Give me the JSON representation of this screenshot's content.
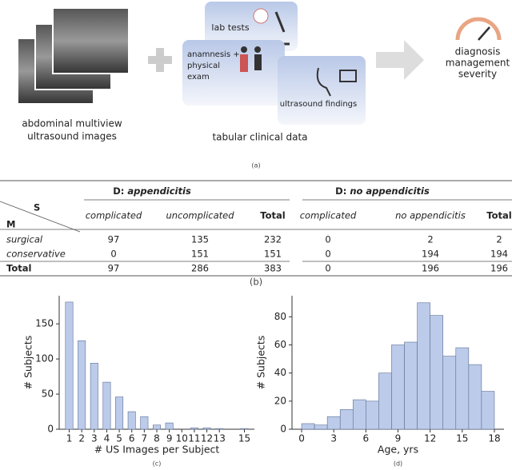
{
  "panel_a": {
    "image_caption": [
      "abdominal multiview",
      "ultrasound images"
    ],
    "lab": "lab tests",
    "anamnesis": [
      "anamnesis +",
      "physical",
      "exam"
    ],
    "ultrasound": "ultrasound findings",
    "tabular_caption": "tabular clinical data",
    "outputs": [
      "diagnosis",
      "management",
      "severity"
    ],
    "caption": "(a)"
  },
  "table": {
    "corner_s": "S",
    "corner_m": "M",
    "groups": [
      {
        "prefix": "D:",
        "name": "appendicitis"
      },
      {
        "prefix": "D:",
        "name": "no appendicitis"
      }
    ],
    "columns": [
      "complicated",
      "uncomplicated",
      "Total",
      "complicated",
      "no appendicitis",
      "Total"
    ],
    "rows": [
      {
        "label": "surgical",
        "values": [
          97,
          135,
          232,
          0,
          2,
          2
        ]
      },
      {
        "label": "conservative",
        "values": [
          0,
          151,
          151,
          0,
          194,
          194
        ]
      },
      {
        "label": "Total",
        "values": [
          97,
          286,
          383,
          0,
          196,
          196
        ]
      }
    ],
    "caption": "(b)"
  },
  "chart_data": [
    {
      "type": "bar",
      "x": [
        1,
        2,
        3,
        4,
        5,
        6,
        7,
        8,
        9,
        10,
        11,
        12,
        13,
        14,
        15
      ],
      "values": [
        181,
        126,
        94,
        67,
        46,
        25,
        18,
        6,
        9,
        0,
        2,
        2,
        1,
        0,
        1
      ],
      "color": "#bccbea",
      "edge": "#5d6f94",
      "xlim": [
        0.2,
        15.8
      ],
      "xticks": [
        1,
        2,
        3,
        4,
        5,
        6,
        7,
        8,
        9,
        10,
        11,
        12,
        13,
        15
      ],
      "ylim": [
        0,
        190
      ],
      "yticks": [
        0,
        50,
        100,
        150
      ],
      "xlabel": "# US Images per Subject",
      "ylabel": "# Subjects",
      "caption": "(c)"
    },
    {
      "type": "histogram",
      "bins": [
        0,
        1.2,
        2.4,
        3.6,
        4.8,
        6,
        7.2,
        8.4,
        9.6,
        10.8,
        12,
        13.2,
        14.4,
        15.6,
        16.8,
        18
      ],
      "values": [
        4,
        3,
        9,
        14,
        21,
        20,
        40,
        60,
        62,
        90,
        81,
        52,
        58,
        46,
        27
      ],
      "color": "#bccbea",
      "edge": "#5d6f94",
      "xlim": [
        -0.9,
        18.9
      ],
      "xticks": [
        0,
        3,
        6,
        9,
        12,
        15,
        18
      ],
      "ylim": [
        0,
        95
      ],
      "yticks": [
        0,
        20,
        40,
        60,
        80
      ],
      "xlabel": "Age, yrs",
      "ylabel": "# Subjects",
      "caption": "(d)"
    }
  ]
}
